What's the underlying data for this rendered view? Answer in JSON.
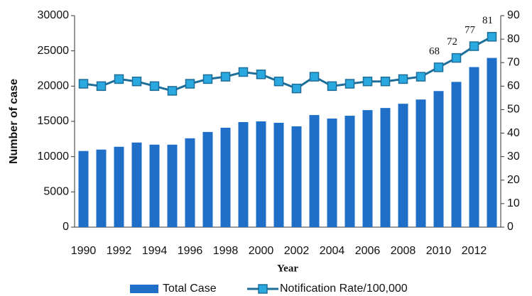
{
  "chart_data": {
    "type": "bar",
    "x_label": "Year",
    "y_label": "Number of case",
    "categories": [
      "1990",
      null,
      "1992",
      null,
      "1994",
      null,
      "1996",
      null,
      "1998",
      null,
      "2000",
      null,
      "2002",
      null,
      "2004",
      null,
      "2006",
      null,
      "2008",
      null,
      "2010",
      null,
      "2012",
      null
    ],
    "series": [
      {
        "name": "Total Case",
        "type": "bar",
        "color": "#1f6fc8",
        "axis": "y",
        "values": [
          10800,
          11000,
          11400,
          12000,
          11700,
          11700,
          12600,
          13500,
          14100,
          14900,
          15000,
          14800,
          14300,
          15900,
          15400,
          15800,
          16600,
          16900,
          17500,
          18100,
          19300,
          20600,
          22700,
          24000
        ]
      },
      {
        "name": "Notification Rate/100,000",
        "type": "line",
        "color": "#1d6f9a",
        "marker_color": "#2aa8e0",
        "axis": "y2",
        "values": [
          61,
          60,
          63,
          62,
          60,
          58,
          61,
          63,
          64,
          66,
          65,
          62,
          59,
          64,
          60,
          61,
          62,
          62,
          63,
          64,
          68,
          72,
          77,
          81
        ],
        "value_labels": [
          null,
          null,
          null,
          null,
          null,
          null,
          null,
          null,
          null,
          null,
          null,
          null,
          null,
          null,
          null,
          null,
          null,
          null,
          null,
          null,
          "68",
          "72",
          "77",
          "81"
        ]
      }
    ],
    "ylim": [
      0,
      30000
    ],
    "yticks": [
      0,
      5000,
      10000,
      15000,
      20000,
      25000,
      30000
    ],
    "y2lim": [
      0,
      90
    ],
    "y2ticks": [
      0,
      10,
      20,
      30,
      40,
      50,
      60,
      70,
      80,
      90
    ],
    "legend": "bottom"
  }
}
